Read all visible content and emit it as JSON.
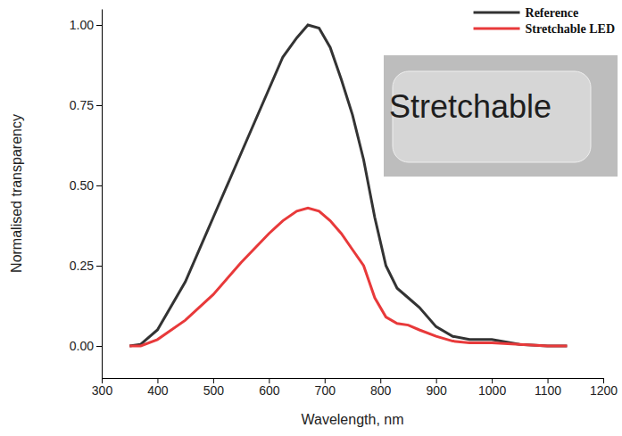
{
  "chart_data": {
    "type": "line",
    "x_label": "Wavelength, nm",
    "y_label": "Normalised transparency",
    "x": [
      350,
      370,
      400,
      450,
      500,
      550,
      600,
      625,
      650,
      670,
      690,
      710,
      730,
      750,
      770,
      790,
      810,
      830,
      850,
      870,
      900,
      930,
      960,
      1000,
      1050,
      1100,
      1135
    ],
    "series": [
      {
        "name": "Reference",
        "color": "#333333",
        "line_style": "solid",
        "values": [
          0,
          0.005,
          0.05,
          0.2,
          0.4,
          0.6,
          0.8,
          0.9,
          0.96,
          1.0,
          0.99,
          0.93,
          0.83,
          0.72,
          0.58,
          0.4,
          0.25,
          0.18,
          0.15,
          0.12,
          0.06,
          0.03,
          0.02,
          0.02,
          0.005,
          0,
          0
        ]
      },
      {
        "name": "Stretchable LED",
        "color": "#e8393a",
        "line_style": "solid",
        "values": [
          0,
          0,
          0.02,
          0.08,
          0.16,
          0.26,
          0.35,
          0.39,
          0.42,
          0.43,
          0.42,
          0.39,
          0.35,
          0.3,
          0.25,
          0.15,
          0.09,
          0.07,
          0.065,
          0.05,
          0.03,
          0.015,
          0.01,
          0.01,
          0.005,
          0,
          0
        ]
      }
    ],
    "xlim": [
      300,
      1200
    ],
    "xticks": [
      300,
      400,
      500,
      600,
      700,
      800,
      900,
      1000,
      1100,
      1200
    ],
    "ylim": [
      -0.1,
      1.05
    ],
    "yticks": [
      {
        "value": 0,
        "label": "0.00"
      },
      {
        "value": 0.25,
        "label": "0.25"
      },
      {
        "value": 0.5,
        "label": "0.50"
      },
      {
        "value": 0.75,
        "label": "0.75"
      },
      {
        "value": 1,
        "label": "1.00"
      }
    ],
    "grid": false,
    "legend": "upper right",
    "annotations": [
      {
        "text": "Stretchable"
      }
    ]
  }
}
